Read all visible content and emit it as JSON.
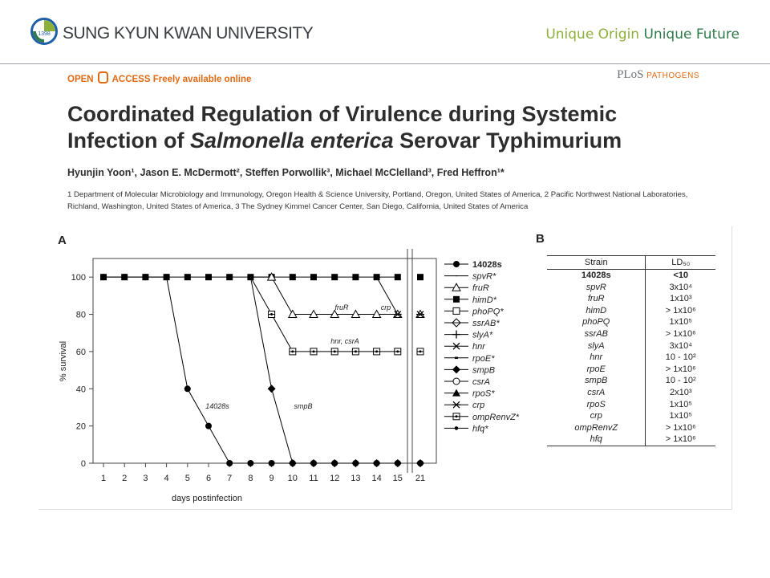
{
  "header": {
    "university": "SUNG KYUN KWAN UNIVERSITY",
    "tagline_part1": "Unique Origin",
    "tagline_part2": "Unique Future",
    "colors": {
      "green_light": "#8db03a",
      "green_dark": "#2f7a4a",
      "logo_blue": "#1f5fa8"
    }
  },
  "paper": {
    "open_access": "OPEN",
    "open_access_2": "ACCESS Freely available online",
    "journal": "PLoS",
    "journal_section": "PATHOGENS",
    "title_line1": "Coordinated Regulation of Virulence during Systemic",
    "title_line2_pre": "Infection of ",
    "title_line2_em": "Salmonella enterica",
    "title_line2_post": " Serovar Typhimurium",
    "authors": "Hyunjin Yoon¹, Jason E. McDermott², Steffen Porwollik³, Michael McClelland³, Fred Heffron¹*",
    "affiliations": "1 Department of Molecular Microbiology and Immunology, Oregon Health & Science University, Portland, Oregon, United States of America, 2 Pacific Northwest National Laboratories, Richland, Washington, United States of America, 3 The Sydney Kimmel Cancer Center, San Diego, California, United States of America"
  },
  "figure": {
    "panel_a": "A",
    "panel_b": "B",
    "annotations": [
      "fruR",
      "crp",
      "hnr, csrA",
      "14028s",
      "smpB"
    ],
    "legend": [
      {
        "name": "14028s",
        "marker": "circle-filled"
      },
      {
        "name": "spvR*",
        "marker": "dash"
      },
      {
        "name": "fruR",
        "marker": "triangle-open"
      },
      {
        "name": "himD*",
        "marker": "square-filled"
      },
      {
        "name": "phoPQ*",
        "marker": "square-open"
      },
      {
        "name": "ssrAB*",
        "marker": "diamond-open"
      },
      {
        "name": "slyA*",
        "marker": "plus"
      },
      {
        "name": "hnr",
        "marker": "x"
      },
      {
        "name": "rpoE*",
        "marker": "dash-bold"
      },
      {
        "name": "smpB",
        "marker": "diamond-filled"
      },
      {
        "name": "csrA",
        "marker": "circle-open"
      },
      {
        "name": "rpoS*",
        "marker": "triangle-filled"
      },
      {
        "name": "crp",
        "marker": "star"
      },
      {
        "name": "ompRenvZ*",
        "marker": "square-dot"
      },
      {
        "name": "hfq*",
        "marker": "dot-small"
      }
    ],
    "table": {
      "headers": [
        "Strain",
        "LD₅₀"
      ],
      "rows": [
        {
          "strain": "14028s",
          "ld": "<10"
        },
        {
          "strain": "spvR",
          "ld": "3x10⁴"
        },
        {
          "strain": "fruR",
          "ld": "1x10³"
        },
        {
          "strain": "himD",
          "ld": "> 1x10⁶"
        },
        {
          "strain": "phoPQ",
          "ld": "1x10⁵"
        },
        {
          "strain": "ssrAB",
          "ld": "> 1x10⁶"
        },
        {
          "strain": "slyA",
          "ld": "3x10⁴"
        },
        {
          "strain": "hnr",
          "ld": "10 - 10²"
        },
        {
          "strain": "rpoE",
          "ld": "> 1x10⁶"
        },
        {
          "strain": "smpB",
          "ld": "10 - 10²"
        },
        {
          "strain": "csrA",
          "ld": "2x10³"
        },
        {
          "strain": "rpoS",
          "ld": "1x10⁵"
        },
        {
          "strain": "crp",
          "ld": "1x10⁵"
        },
        {
          "strain": "ompRenvZ",
          "ld": "> 1x10⁶"
        },
        {
          "strain": "hfq",
          "ld": "> 1x10⁶"
        }
      ]
    }
  },
  "chart_data": {
    "type": "line",
    "title": "",
    "xlabel": "days postinfection",
    "ylabel": "% survival",
    "x_ticks": [
      "1",
      "2",
      "3",
      "4",
      "5",
      "6",
      "7",
      "8",
      "9",
      "10",
      "11",
      "12",
      "13",
      "14",
      "15",
      "21"
    ],
    "y_ticks": [
      0,
      20,
      40,
      60,
      80,
      100
    ],
    "ylim": [
      0,
      110
    ],
    "series": [
      {
        "name": "14028s",
        "x": [
          1,
          2,
          3,
          4,
          5,
          6,
          7,
          8,
          9,
          10,
          11,
          12,
          13,
          14,
          15,
          21
        ],
        "y": [
          100,
          100,
          100,
          100,
          40,
          20,
          0,
          0,
          0,
          0,
          0,
          0,
          0,
          0,
          0,
          0
        ]
      },
      {
        "name": "smpB",
        "x": [
          8,
          9,
          10,
          11,
          12,
          13,
          14,
          15,
          21
        ],
        "y": [
          100,
          40,
          0,
          0,
          0,
          0,
          0,
          0,
          0
        ]
      },
      {
        "name": "fruR",
        "x": [
          8,
          9,
          10,
          11,
          12,
          13,
          14,
          15,
          21
        ],
        "y": [
          100,
          100,
          80,
          80,
          80,
          80,
          80,
          80,
          80
        ]
      },
      {
        "name": "crp",
        "x": [
          14,
          15,
          21
        ],
        "y": [
          100,
          80,
          80
        ]
      },
      {
        "name": "hnr, csrA",
        "x": [
          8,
          9,
          10,
          11,
          12,
          13,
          14,
          15,
          21
        ],
        "y": [
          100,
          80,
          60,
          60,
          60,
          60,
          60,
          60,
          60
        ]
      },
      {
        "name": "himD*",
        "x": [
          1,
          2,
          3,
          4,
          5,
          6,
          7,
          8,
          9,
          10,
          11,
          12,
          13,
          14,
          15,
          21
        ],
        "y": [
          100,
          100,
          100,
          100,
          100,
          100,
          100,
          100,
          100,
          100,
          100,
          100,
          100,
          100,
          100,
          100
        ]
      }
    ]
  }
}
